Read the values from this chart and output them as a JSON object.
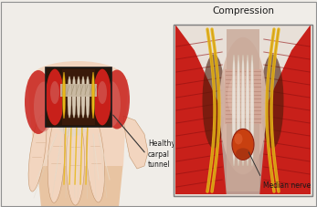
{
  "bg_color": "#f0ede8",
  "title_text": "Compression",
  "label1_text": "Healthy\ncarpal\ntunnel",
  "label2_text": "Median nerve",
  "fig_width": 3.47,
  "fig_height": 2.27,
  "dpi": 100,
  "skin_light": "#f2d5bf",
  "skin_mid": "#e8c4a2",
  "skin_dark": "#d4a882",
  "skin_shadow": "#c4966e",
  "muscle_bright_red": "#c8201a",
  "muscle_mid_red": "#a01818",
  "muscle_dark_red": "#7a1010",
  "muscle_pink": "#d4706a",
  "nerve_yellow": "#e8b818",
  "nerve_gold": "#c89010",
  "tendon_cream": "#e8dcc8",
  "tendon_light": "#f0e8d8",
  "ligament_pink": "#d8a898",
  "ligament_stripe": "#c89888",
  "median_orange": "#c84010",
  "median_bright": "#e06030",
  "bg_dark": "#503020",
  "text_color": "#1a1a1a",
  "line_color": "#333333",
  "border_color": "#808080",
  "panel_bg": "#e8e0d4"
}
